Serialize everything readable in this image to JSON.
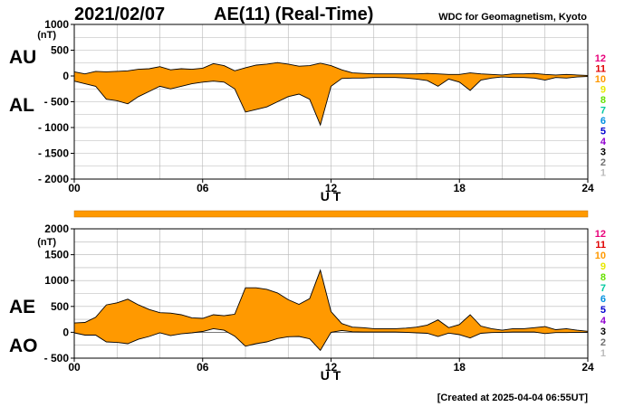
{
  "header": {
    "date": "2021/02/07",
    "title": "AE(11) (Real-Time)",
    "source": "WDC for Geomagnetism, Kyoto"
  },
  "footer": {
    "created": "[Created at 2025-04-04 06:55UT]"
  },
  "station_legend": {
    "labels": [
      "12",
      "11",
      "10",
      "9",
      "8",
      "7",
      "6",
      "5",
      "4",
      "3",
      "2",
      "1"
    ],
    "colors": [
      "#e8007a",
      "#e00000",
      "#ff9900",
      "#e8e800",
      "#66e000",
      "#00c8a0",
      "#0090e0",
      "#0000d0",
      "#9000d0",
      "#000000",
      "#707070",
      "#bbbbbb"
    ]
  },
  "colors": {
    "fill": "#ff9900",
    "line": "#000000",
    "grid": "#b4b4b4"
  },
  "chart_data": [
    {
      "type": "area",
      "panel": "top",
      "label_top": "AU",
      "label_bottom": "AL",
      "ylabel": "(nT)",
      "xlabel": "U T",
      "ylim": [
        -2000,
        1000
      ],
      "xlim": [
        0,
        24
      ],
      "xticks": [
        "00",
        "06",
        "12",
        "18",
        "24"
      ],
      "yticks": [
        "1000",
        "500",
        "0",
        "- 500",
        "- 1000",
        "- 1500",
        "- 2000"
      ],
      "grid": true,
      "x": [
        0,
        0.5,
        1,
        1.5,
        2,
        2.5,
        3,
        3.5,
        4,
        4.5,
        5,
        5.5,
        6,
        6.5,
        7,
        7.5,
        8,
        8.5,
        9,
        9.5,
        10,
        10.5,
        11,
        11.5,
        12,
        12.5,
        13,
        13.5,
        14,
        14.5,
        15,
        15.5,
        16,
        16.5,
        17,
        17.5,
        18,
        18.5,
        19,
        19.5,
        20,
        20.5,
        21,
        21.5,
        22,
        22.5,
        23,
        23.5,
        24
      ],
      "series": [
        {
          "name": "AU",
          "values": [
            80,
            40,
            90,
            80,
            90,
            100,
            130,
            140,
            180,
            120,
            140,
            130,
            150,
            240,
            200,
            100,
            160,
            210,
            230,
            260,
            230,
            190,
            200,
            250,
            200,
            120,
            60,
            50,
            40,
            40,
            40,
            40,
            40,
            50,
            40,
            30,
            30,
            60,
            40,
            30,
            20,
            40,
            40,
            50,
            30,
            20,
            30,
            20,
            10
          ]
        },
        {
          "name": "AL",
          "values": [
            -100,
            -150,
            -200,
            -450,
            -480,
            -540,
            -400,
            -300,
            -200,
            -250,
            -200,
            -150,
            -120,
            -100,
            -120,
            -250,
            -700,
            -650,
            -600,
            -500,
            -400,
            -350,
            -450,
            -950,
            -200,
            -50,
            -40,
            -40,
            -30,
            -30,
            -30,
            -40,
            -60,
            -90,
            -200,
            -60,
            -120,
            -280,
            -80,
            -40,
            -20,
            -30,
            -30,
            -40,
            -80,
            -30,
            -40,
            -20,
            -10
          ]
        }
      ]
    },
    {
      "type": "area",
      "panel": "bottom",
      "label_top": "AE",
      "label_bottom": "AO",
      "ylabel": "(nT)",
      "xlabel": "U T",
      "ylim": [
        -500,
        2000
      ],
      "xlim": [
        0,
        24
      ],
      "xticks": [
        "00",
        "06",
        "12",
        "18",
        "24"
      ],
      "yticks": [
        "2000",
        "1500",
        "1000",
        "500",
        "0",
        "- 500"
      ],
      "grid": true,
      "x": [
        0,
        0.5,
        1,
        1.5,
        2,
        2.5,
        3,
        3.5,
        4,
        4.5,
        5,
        5.5,
        6,
        6.5,
        7,
        7.5,
        8,
        8.5,
        9,
        9.5,
        10,
        10.5,
        11,
        11.5,
        12,
        12.5,
        13,
        13.5,
        14,
        14.5,
        15,
        15.5,
        16,
        16.5,
        17,
        17.5,
        18,
        18.5,
        19,
        19.5,
        20,
        20.5,
        21,
        21.5,
        22,
        22.5,
        23,
        23.5,
        24
      ],
      "series": [
        {
          "name": "AE",
          "values": [
            180,
            190,
            290,
            530,
            570,
            640,
            530,
            440,
            380,
            370,
            340,
            280,
            270,
            340,
            320,
            350,
            860,
            860,
            830,
            760,
            630,
            540,
            650,
            1200,
            400,
            170,
            100,
            90,
            70,
            70,
            70,
            80,
            100,
            140,
            240,
            90,
            150,
            340,
            120,
            70,
            40,
            70,
            70,
            90,
            110,
            50,
            70,
            40,
            20
          ]
        },
        {
          "name": "AO",
          "values": [
            -10,
            -55,
            -55,
            -185,
            -195,
            -220,
            -135,
            -80,
            -10,
            -65,
            -30,
            -10,
            15,
            70,
            40,
            -75,
            -270,
            -220,
            -185,
            -120,
            -85,
            -80,
            -125,
            -350,
            0,
            35,
            10,
            5,
            5,
            5,
            5,
            0,
            -10,
            -20,
            -80,
            -15,
            -45,
            -110,
            -20,
            -5,
            0,
            5,
            5,
            5,
            -25,
            -5,
            -5,
            0,
            0
          ]
        }
      ]
    }
  ]
}
